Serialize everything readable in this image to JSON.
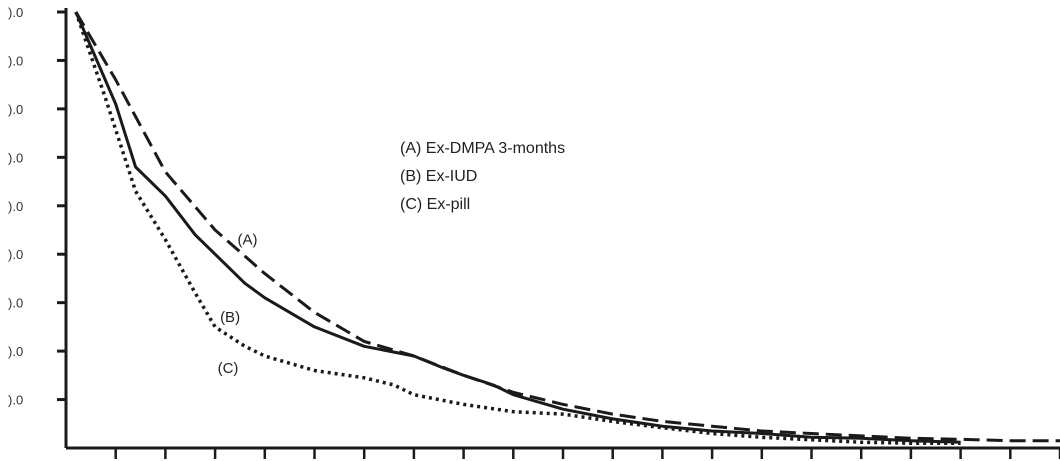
{
  "chart_data": {
    "type": "line",
    "xlim": [
      0,
      20
    ],
    "ylim": [
      0,
      9
    ],
    "y_ticks": [
      {
        "value": 1,
        "label": ").0"
      },
      {
        "value": 2,
        "label": ").0"
      },
      {
        "value": 3,
        "label": ").0"
      },
      {
        "value": 4,
        "label": ").0"
      },
      {
        "value": 5,
        "label": ").0"
      },
      {
        "value": 6,
        "label": ").0"
      },
      {
        "value": 7,
        "label": ").0"
      },
      {
        "value": 8,
        "label": ").0"
      },
      {
        "value": 9,
        "label": ").0"
      }
    ],
    "x_ticks": [
      1,
      2,
      3,
      4,
      5,
      6,
      7,
      8,
      9,
      10,
      11,
      12,
      13,
      14,
      15,
      16,
      17,
      18,
      19,
      20
    ],
    "legend": {
      "placement": "center",
      "entries": [
        "(A)  Ex-DMPA 3-months",
        "(B)  Ex-IUD",
        "(C)  Ex-pill"
      ]
    },
    "series": [
      {
        "label": "(A)",
        "style": "dashed",
        "color": "#1a1a1a",
        "points": [
          [
            0.2,
            9.0
          ],
          [
            1.0,
            7.6
          ],
          [
            2.0,
            5.7
          ],
          [
            3.0,
            4.5
          ],
          [
            4.0,
            3.6
          ],
          [
            5.0,
            2.8
          ],
          [
            6.0,
            2.2
          ],
          [
            7.0,
            1.9
          ],
          [
            8.0,
            1.5
          ],
          [
            9.0,
            1.15
          ],
          [
            10.0,
            0.9
          ],
          [
            11.0,
            0.7
          ],
          [
            12.0,
            0.55
          ],
          [
            13.0,
            0.45
          ],
          [
            14.0,
            0.35
          ],
          [
            15.0,
            0.3
          ],
          [
            16.0,
            0.25
          ],
          [
            17.0,
            0.2
          ],
          [
            18.0,
            0.18
          ],
          [
            19.0,
            0.15
          ],
          [
            20.0,
            0.15
          ]
        ]
      },
      {
        "label": "(B)",
        "style": "solid",
        "color": "#1a1a1a",
        "points": [
          [
            0.2,
            9.0
          ],
          [
            1.0,
            7.1
          ],
          [
            1.4,
            5.8
          ],
          [
            2.0,
            5.2
          ],
          [
            2.6,
            4.4
          ],
          [
            3.0,
            4.0
          ],
          [
            3.6,
            3.4
          ],
          [
            4.0,
            3.1
          ],
          [
            5.0,
            2.5
          ],
          [
            6.0,
            2.1
          ],
          [
            7.0,
            1.9
          ],
          [
            7.6,
            1.65
          ],
          [
            8.0,
            1.5
          ],
          [
            8.6,
            1.3
          ],
          [
            9.0,
            1.1
          ],
          [
            10.0,
            0.8
          ],
          [
            11.0,
            0.6
          ],
          [
            12.0,
            0.45
          ],
          [
            13.0,
            0.35
          ],
          [
            14.0,
            0.3
          ],
          [
            15.0,
            0.22
          ],
          [
            16.0,
            0.2
          ],
          [
            17.0,
            0.15
          ],
          [
            18.0,
            0.12
          ]
        ]
      },
      {
        "label": "(C)",
        "style": "dotted",
        "color": "#1a1a1a",
        "points": [
          [
            0.2,
            9.0
          ],
          [
            0.8,
            7.2
          ],
          [
            1.4,
            5.3
          ],
          [
            2.0,
            4.3
          ],
          [
            2.6,
            3.2
          ],
          [
            3.0,
            2.5
          ],
          [
            3.6,
            2.1
          ],
          [
            4.0,
            1.9
          ],
          [
            5.0,
            1.6
          ],
          [
            6.0,
            1.45
          ],
          [
            6.6,
            1.3
          ],
          [
            7.0,
            1.1
          ],
          [
            8.0,
            0.9
          ],
          [
            9.0,
            0.75
          ],
          [
            10.0,
            0.7
          ],
          [
            11.0,
            0.55
          ],
          [
            12.0,
            0.42
          ],
          [
            13.0,
            0.3
          ],
          [
            14.0,
            0.22
          ],
          [
            15.0,
            0.17
          ],
          [
            16.0,
            0.12
          ],
          [
            17.0,
            0.1
          ],
          [
            18.0,
            0.1
          ]
        ]
      }
    ]
  }
}
